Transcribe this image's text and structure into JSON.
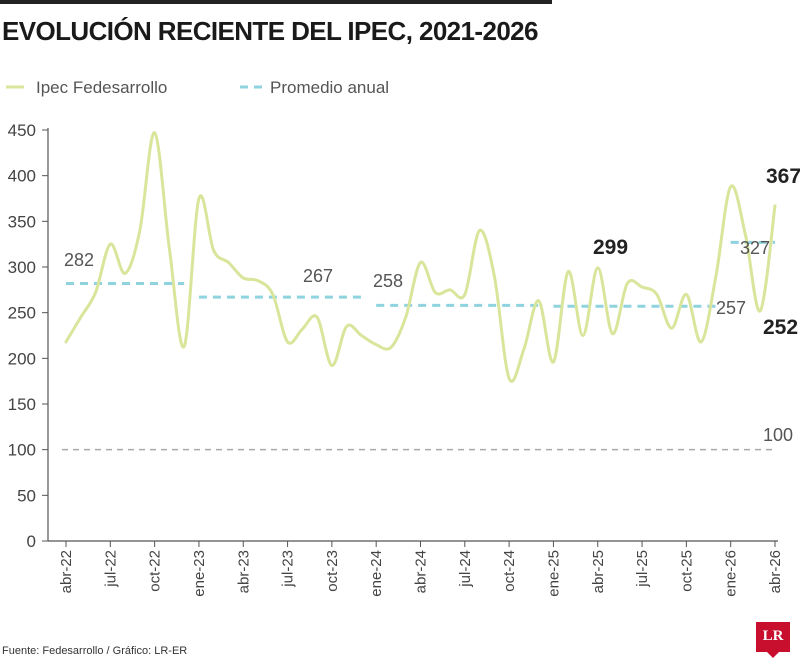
{
  "title": "EVOLUCIÓN RECIENTE DEL IPEC, 2021-2026",
  "source": "Fuente: Fedesarrollo / Gráfico: LR-ER",
  "logo_text": "LR",
  "colors": {
    "ipec": "#d8e59a",
    "promedio": "#8fd3df",
    "reference": "#aaaaaa",
    "axis": "#555555"
  },
  "chart_data": {
    "type": "line",
    "title": "EVOLUCIÓN RECIENTE DEL IPEC, 2021-2026",
    "ylim": [
      0,
      450
    ],
    "yticks": [
      0,
      50,
      100,
      150,
      200,
      250,
      300,
      350,
      400,
      450
    ],
    "xtick_labels": [
      "abr-22",
      "jul-22",
      "oct-22",
      "ene-23",
      "abr-23",
      "jul-23",
      "oct-23",
      "ene-24",
      "abr-24",
      "jul-24",
      "oct-24",
      "ene-25",
      "abr-25",
      "jul-25",
      "oct-25",
      "ene-26",
      "abr-26"
    ],
    "legend": {
      "position": "top-left",
      "entries": [
        "Ipec Fedesarrollo",
        "Promedio anual"
      ]
    },
    "series": [
      {
        "name": "Ipec Fedesarrollo",
        "x": [
          "abr-22",
          "may-22",
          "jun-22",
          "jul-22",
          "ago-22",
          "sep-22",
          "oct-22",
          "nov-22",
          "dic-22",
          "ene-23",
          "feb-23",
          "mar-23",
          "abr-23",
          "may-23",
          "jun-23",
          "jul-23",
          "ago-23",
          "sep-23",
          "oct-23",
          "nov-23",
          "dic-23",
          "ene-24",
          "feb-24",
          "mar-24",
          "abr-24",
          "may-24",
          "jun-24",
          "jul-24",
          "ago-24",
          "sep-24",
          "oct-24",
          "nov-24",
          "dic-24",
          "ene-25",
          "feb-25",
          "mar-25",
          "abr-25",
          "may-25",
          "jun-25",
          "jul-25",
          "ago-25",
          "sep-25",
          "oct-25",
          "nov-25",
          "dic-25",
          "ene-26",
          "feb-26",
          "mar-26",
          "abr-26"
        ],
        "values": [
          218,
          245,
          272,
          325,
          293,
          340,
          447,
          320,
          213,
          375,
          318,
          305,
          288,
          285,
          270,
          218,
          232,
          245,
          192,
          235,
          225,
          215,
          212,
          245,
          305,
          272,
          275,
          270,
          340,
          290,
          178,
          210,
          263,
          196,
          295,
          225,
          299,
          227,
          282,
          278,
          270,
          233,
          270,
          218,
          290,
          388,
          335,
          252,
          367
        ]
      },
      {
        "name": "Promedio anual",
        "segments": [
          {
            "from": "abr-22",
            "to": "dic-22",
            "value": 282
          },
          {
            "from": "ene-23",
            "to": "dic-23",
            "value": 267
          },
          {
            "from": "ene-24",
            "to": "dic-24",
            "value": 258
          },
          {
            "from": "ene-25",
            "to": "dic-25",
            "value": 257
          },
          {
            "from": "ene-26",
            "to": "abr-26",
            "value": 327
          }
        ]
      }
    ],
    "reference_line": {
      "value": 100,
      "label": "100"
    },
    "annotations": [
      {
        "text": "282",
        "bold": false
      },
      {
        "text": "267",
        "bold": false
      },
      {
        "text": "258",
        "bold": false
      },
      {
        "text": "257",
        "bold": false
      },
      {
        "text": "327",
        "bold": false
      },
      {
        "text": "100",
        "bold": false
      },
      {
        "text": "299",
        "bold": true
      },
      {
        "text": "367",
        "bold": true
      },
      {
        "text": "252",
        "bold": true
      }
    ]
  }
}
